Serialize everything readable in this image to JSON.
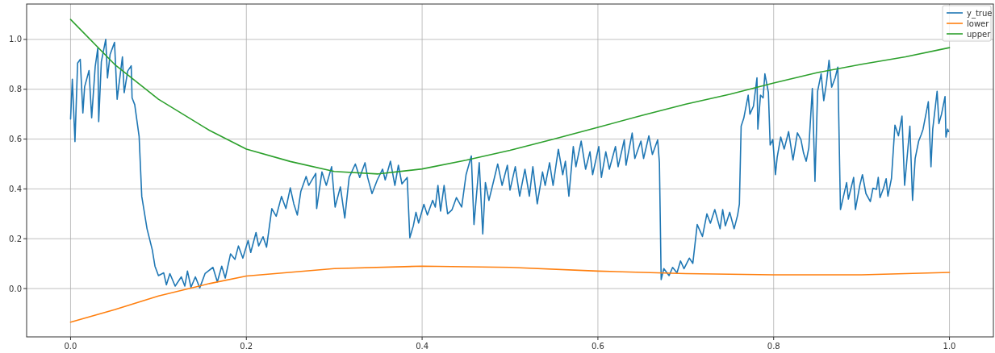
{
  "chart_data": {
    "type": "line",
    "xlim": [
      -0.05,
      1.05
    ],
    "ylim": [
      -0.194,
      1.142
    ],
    "xticks": [
      {
        "value": 0,
        "label": "0.0"
      },
      0.2,
      0.4,
      0.6,
      0.8,
      {
        "value": 1,
        "label": "1.0"
      }
    ],
    "yticks": [
      {
        "value": 0,
        "label": "0.0"
      },
      0.2,
      0.4,
      0.6,
      0.8,
      {
        "value": 1,
        "label": "1.0"
      }
    ],
    "grid": true,
    "legend": "top right",
    "series": [
      {
        "name": "y_true",
        "color": "#1f77b4",
        "x": [
          0,
          0.002,
          0.005,
          0.008,
          0.011,
          0.014,
          0.016,
          0.021,
          0.024,
          0.028,
          0.031,
          0.032,
          0.035,
          0.04,
          0.042,
          0.045,
          0.05,
          0.053,
          0.059,
          0.061,
          0.065,
          0.069,
          0.07,
          0.073,
          0.078,
          0.081,
          0.087,
          0.093,
          0.096,
          0.1,
          0.106,
          0.109,
          0.113,
          0.119,
          0.126,
          0.13,
          0.133,
          0.137,
          0.142,
          0.147,
          0.153,
          0.162,
          0.167,
          0.172,
          0.176,
          0.182,
          0.187,
          0.191,
          0.196,
          0.202,
          0.205,
          0.211,
          0.214,
          0.219,
          0.223,
          0.229,
          0.234,
          0.24,
          0.245,
          0.25,
          0.254,
          0.258,
          0.262,
          0.268,
          0.271,
          0.279,
          0.28,
          0.286,
          0.291,
          0.297,
          0.301,
          0.307,
          0.312,
          0.317,
          0.324,
          0.329,
          0.335,
          0.338,
          0.343,
          0.349,
          0.355,
          0.358,
          0.364,
          0.369,
          0.373,
          0.377,
          0.383,
          0.386,
          0.39,
          0.393,
          0.396,
          0.402,
          0.406,
          0.412,
          0.415,
          0.418,
          0.421,
          0.425,
          0.429,
          0.434,
          0.439,
          0.445,
          0.45,
          0.456,
          0.459,
          0.465,
          0.469,
          0.472,
          0.476,
          0.482,
          0.486,
          0.491,
          0.497,
          0.5,
          0.506,
          0.511,
          0.517,
          0.522,
          0.526,
          0.531,
          0.537,
          0.54,
          0.545,
          0.549,
          0.555,
          0.56,
          0.563,
          0.567,
          0.572,
          0.575,
          0.581,
          0.586,
          0.591,
          0.594,
          0.601,
          0.604,
          0.609,
          0.613,
          0.62,
          0.623,
          0.63,
          0.632,
          0.639,
          0.642,
          0.649,
          0.652,
          0.658,
          0.662,
          0.668,
          0.67,
          0.672,
          0.675,
          0.681,
          0.685,
          0.69,
          0.694,
          0.698,
          0.704,
          0.708,
          0.713,
          0.719,
          0.724,
          0.728,
          0.733,
          0.739,
          0.742,
          0.745,
          0.75,
          0.755,
          0.759,
          0.761,
          0.763,
          0.766,
          0.771,
          0.773,
          0.777,
          0.781,
          0.782,
          0.785,
          0.788,
          0.79,
          0.794,
          0.796,
          0.799,
          0.802,
          0.804,
          0.808,
          0.812,
          0.817,
          0.822,
          0.827,
          0.831,
          0.834,
          0.837,
          0.84,
          0.844,
          0.847,
          0.85,
          0.854,
          0.857,
          0.86,
          0.863,
          0.866,
          0.87,
          0.873,
          0.876,
          0.883,
          0.885,
          0.891,
          0.893,
          0.898,
          0.901,
          0.905,
          0.91,
          0.913,
          0.917,
          0.919,
          0.921,
          0.925,
          0.928,
          0.93,
          0.934,
          0.938,
          0.942,
          0.946,
          0.949,
          0.955,
          0.958,
          0.961,
          0.965,
          0.968,
          0.97,
          0.976,
          0.979,
          0.981,
          0.986,
          0.988,
          0.991,
          0.995,
          0.996,
          0.998,
          0.999
        ],
        "values": [
          0.68,
          0.84,
          0.59,
          0.905,
          0.92,
          0.705,
          0.81,
          0.875,
          0.685,
          0.89,
          0.965,
          0.67,
          0.91,
          1.0,
          0.845,
          0.94,
          0.988,
          0.76,
          0.93,
          0.786,
          0.873,
          0.894,
          0.765,
          0.738,
          0.61,
          0.37,
          0.24,
          0.155,
          0.09,
          0.052,
          0.063,
          0.015,
          0.06,
          0.01,
          0.047,
          0.01,
          0.07,
          0.005,
          0.047,
          0.003,
          0.06,
          0.085,
          0.027,
          0.09,
          0.042,
          0.139,
          0.117,
          0.171,
          0.122,
          0.193,
          0.145,
          0.225,
          0.171,
          0.208,
          0.166,
          0.321,
          0.29,
          0.37,
          0.321,
          0.404,
          0.34,
          0.295,
          0.39,
          0.45,
          0.414,
          0.462,
          0.321,
          0.468,
          0.414,
          0.489,
          0.327,
          0.408,
          0.283,
          0.446,
          0.5,
          0.446,
          0.505,
          0.446,
          0.381,
          0.436,
          0.479,
          0.436,
          0.511,
          0.414,
          0.495,
          0.42,
          0.446,
          0.204,
          0.252,
          0.306,
          0.263,
          0.338,
          0.295,
          0.354,
          0.327,
          0.414,
          0.311,
          0.414,
          0.3,
          0.316,
          0.365,
          0.327,
          0.457,
          0.532,
          0.257,
          0.505,
          0.219,
          0.425,
          0.354,
          0.441,
          0.5,
          0.414,
          0.495,
          0.395,
          0.489,
          0.371,
          0.479,
          0.371,
          0.489,
          0.34,
          0.468,
          0.414,
          0.505,
          0.414,
          0.559,
          0.457,
          0.511,
          0.371,
          0.57,
          0.489,
          0.592,
          0.479,
          0.549,
          0.457,
          0.57,
          0.446,
          0.549,
          0.479,
          0.57,
          0.489,
          0.597,
          0.495,
          0.624,
          0.522,
          0.592,
          0.522,
          0.613,
          0.538,
          0.597,
          0.505,
          0.036,
          0.08,
          0.052,
          0.085,
          0.063,
          0.111,
          0.08,
          0.122,
          0.101,
          0.257,
          0.209,
          0.3,
          0.262,
          0.317,
          0.24,
          0.317,
          0.252,
          0.306,
          0.24,
          0.295,
          0.339,
          0.652,
          0.684,
          0.776,
          0.7,
          0.732,
          0.846,
          0.64,
          0.776,
          0.765,
          0.862,
          0.787,
          0.576,
          0.598,
          0.457,
          0.527,
          0.608,
          0.56,
          0.63,
          0.516,
          0.625,
          0.598,
          0.544,
          0.511,
          0.565,
          0.803,
          0.43,
          0.792,
          0.862,
          0.754,
          0.824,
          0.916,
          0.808,
          0.846,
          0.889,
          0.317,
          0.425,
          0.359,
          0.446,
          0.317,
          0.414,
          0.457,
          0.381,
          0.349,
          0.403,
          0.398,
          0.446,
          0.365,
          0.403,
          0.441,
          0.371,
          0.441,
          0.656,
          0.613,
          0.692,
          0.414,
          0.652,
          0.354,
          0.522,
          0.592,
          0.619,
          0.64,
          0.75,
          0.489,
          0.64,
          0.792,
          0.662,
          0.7,
          0.771,
          0.608,
          0.64,
          0.63
        ]
      },
      {
        "name": "lower",
        "color": "#ff7f0e",
        "x": [
          0,
          0.05,
          0.1,
          0.158,
          0.2,
          0.3,
          0.4,
          0.5,
          0.6,
          0.7,
          0.8,
          0.9,
          1.0
        ],
        "values": [
          -0.135,
          -0.085,
          -0.03,
          0.02,
          0.05,
          0.08,
          0.09,
          0.085,
          0.07,
          0.06,
          0.055,
          0.055,
          0.065
        ]
      },
      {
        "name": "upper",
        "color": "#2ca02c",
        "x": [
          0,
          0.05,
          0.1,
          0.158,
          0.2,
          0.25,
          0.3,
          0.35,
          0.4,
          0.45,
          0.5,
          0.55,
          0.6,
          0.65,
          0.7,
          0.75,
          0.8,
          0.85,
          0.9,
          0.95,
          1.0
        ],
        "values": [
          1.08,
          0.9,
          0.76,
          0.635,
          0.56,
          0.51,
          0.47,
          0.46,
          0.48,
          0.515,
          0.555,
          0.6,
          0.647,
          0.695,
          0.74,
          0.78,
          0.825,
          0.867,
          0.9,
          0.93,
          0.967
        ]
      }
    ]
  }
}
